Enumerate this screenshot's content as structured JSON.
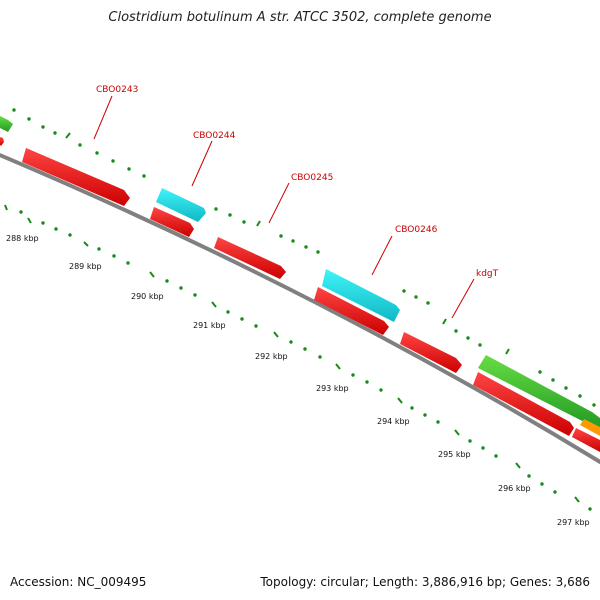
{
  "title": "Clostridium botulinum A str. ATCC 3502, complete genome",
  "footer": {
    "accession": "Accession: NC_009495",
    "topology": "Topology: circular; Length: 3,886,916 bp; Genes: 3,686"
  },
  "gene_labels": [
    "CBO0243",
    "CBO0244",
    "CBO0245",
    "CBO0246",
    "kdgT"
  ],
  "scale_labels": [
    "288 kbp",
    "289 kbp",
    "290 kbp",
    "291 kbp",
    "292 kbp",
    "293 kbp",
    "294 kbp",
    "295 kbp",
    "296 kbp",
    "297 kbp"
  ],
  "colors": {
    "cds": "#ee0000",
    "highlight_cds": "#18d8e0",
    "other_feature": "#33bb33",
    "misc_feature": "#ff9900",
    "backbone": "#808080",
    "ticks": "#1a8a1a",
    "label": "#cc0000"
  }
}
